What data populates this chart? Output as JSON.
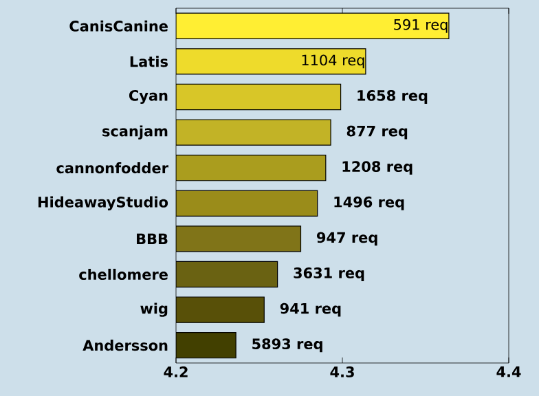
{
  "chart_data": {
    "type": "bar",
    "orientation": "horizontal",
    "categories": [
      "CanisCanine",
      "Latis",
      "Cyan",
      "scanjam",
      "cannonfodder",
      "HideawayStudio",
      "BBB",
      "chellomere",
      "wig",
      "Andersson"
    ],
    "values": [
      4.364,
      4.314,
      4.299,
      4.293,
      4.29,
      4.285,
      4.275,
      4.261,
      4.253,
      4.236
    ],
    "annotations": [
      {
        "text": "591 req",
        "x": 4.364,
        "y": "CanisCanine"
      },
      {
        "text": "1104 req",
        "x": 4.314,
        "y": "Latis"
      },
      {
        "text": "1658 req",
        "x": 4.299,
        "y": "Cyan"
      },
      {
        "text": "877 req",
        "x": 4.293,
        "y": "scanjam"
      },
      {
        "text": "1208 req",
        "x": 4.29,
        "y": "cannonfodder"
      },
      {
        "text": "1496 req",
        "x": 4.285,
        "y": "HideawayStudio"
      },
      {
        "text": "947 req",
        "x": 4.275,
        "y": "BBB"
      },
      {
        "text": "3631 req",
        "x": 4.261,
        "y": "chellomere"
      },
      {
        "text": "941 req",
        "x": 4.253,
        "y": "wig"
      },
      {
        "text": "5893 req",
        "x": 4.236,
        "y": "Andersson"
      }
    ],
    "colors": [
      "#ffee33",
      "#eedb2b",
      "#d8c628",
      "#c2b326",
      "#aa9d1e",
      "#9a8c1a",
      "#807418",
      "#6a6212",
      "#585008",
      "#424000"
    ],
    "xlim": [
      4.2,
      4.4
    ],
    "xticks": [
      4.2,
      4.3,
      4.4
    ],
    "grid": false
  }
}
